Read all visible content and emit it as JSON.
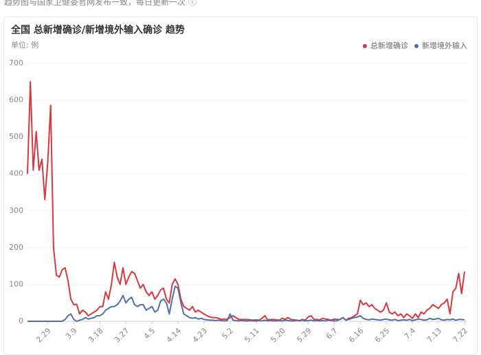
{
  "page": {
    "note": "趋势图与国家卫健委官网发布一致，每日更新一次"
  },
  "chart_data": {
    "type": "line",
    "title": "全国 总新增确诊/新增境外输入确诊 趋势",
    "unit": "单位: 例",
    "categories": [
      null,
      null,
      null,
      null,
      null,
      null,
      null,
      "2.29",
      null,
      null,
      null,
      null,
      null,
      null,
      null,
      null,
      "3.9",
      null,
      null,
      null,
      null,
      null,
      null,
      null,
      null,
      "3.18",
      null,
      null,
      null,
      null,
      null,
      null,
      null,
      null,
      "3.27",
      null,
      null,
      null,
      null,
      null,
      null,
      null,
      null,
      "4.5",
      null,
      null,
      null,
      null,
      null,
      null,
      null,
      null,
      "4.14",
      null,
      null,
      null,
      null,
      null,
      null,
      null,
      null,
      "4.23",
      null,
      null,
      null,
      null,
      null,
      null,
      null,
      null,
      "5.2",
      null,
      null,
      null,
      null,
      null,
      null,
      null,
      null,
      "5.11",
      null,
      null,
      null,
      null,
      null,
      null,
      null,
      null,
      "5.20",
      null,
      null,
      null,
      null,
      null,
      null,
      null,
      null,
      "5.29",
      null,
      null,
      null,
      null,
      null,
      null,
      null,
      null,
      "6.7",
      null,
      null,
      null,
      null,
      null,
      null,
      null,
      null,
      "6.16",
      null,
      null,
      null,
      null,
      null,
      null,
      null,
      null,
      "6.25",
      null,
      null,
      null,
      null,
      null,
      null,
      null,
      null,
      "7.4",
      null,
      null,
      null,
      null,
      null,
      null,
      null,
      null,
      "7.13",
      null,
      null,
      null,
      null,
      null,
      null,
      null,
      null,
      "7.22"
    ],
    "series": [
      {
        "name": "总新增确诊",
        "color": "#d9363e",
        "values": [
          400,
          650,
          410,
          515,
          410,
          440,
          330,
          430,
          586,
          200,
          125,
          120,
          140,
          145,
          110,
          60,
          45,
          46,
          20,
          30,
          25,
          15,
          20,
          25,
          30,
          40,
          40,
          80,
          60,
          100,
          160,
          120,
          100,
          145,
          100,
          120,
          135,
          130,
          110,
          90,
          100,
          80,
          70,
          80,
          60,
          70,
          85,
          90,
          60,
          50,
          100,
          115,
          100,
          60,
          40,
          35,
          30,
          40,
          25,
          30,
          25,
          20,
          15,
          12,
          10,
          10,
          8,
          5,
          6,
          5,
          10,
          15,
          10,
          5,
          5,
          5,
          5,
          4,
          3,
          4,
          3,
          8,
          15,
          4,
          5,
          5,
          4,
          3,
          8,
          5,
          10,
          5,
          4,
          3,
          2,
          5,
          3,
          12,
          15,
          5,
          5,
          4,
          8,
          6,
          5,
          3,
          6,
          5,
          5,
          10,
          3,
          8,
          10,
          15,
          20,
          57,
          45,
          50,
          40,
          45,
          35,
          30,
          25,
          30,
          50,
          25,
          20,
          25,
          15,
          20,
          10,
          20,
          15,
          8,
          20,
          10,
          25,
          20,
          30,
          35,
          45,
          40,
          35,
          45,
          50,
          60,
          20,
          80,
          90,
          130,
          75,
          135
        ]
      },
      {
        "name": "新增境外输入",
        "color": "#4e6fa7",
        "values": [
          0,
          0,
          0,
          0,
          0,
          0,
          0,
          0,
          0,
          0,
          0,
          0,
          0,
          5,
          15,
          20,
          5,
          0,
          3,
          5,
          10,
          6,
          8,
          10,
          15,
          15,
          20,
          30,
          35,
          40,
          40,
          45,
          55,
          70,
          50,
          60,
          65,
          45,
          40,
          45,
          45,
          30,
          35,
          40,
          25,
          30,
          55,
          60,
          50,
          20,
          60,
          95,
          90,
          50,
          20,
          15,
          10,
          8,
          10,
          6,
          8,
          5,
          4,
          3,
          3,
          2,
          3,
          2,
          1,
          2,
          20,
          3,
          2,
          1,
          2,
          1,
          1,
          2,
          1,
          1,
          2,
          1,
          3,
          1,
          2,
          1,
          1,
          2,
          1,
          3,
          2,
          1,
          1,
          2,
          1,
          3,
          1,
          2,
          3,
          1,
          2,
          1,
          2,
          1,
          3,
          2,
          1,
          2,
          5,
          10,
          3,
          5,
          8,
          10,
          12,
          15,
          8,
          5,
          4,
          6,
          5,
          4,
          3,
          5,
          6,
          4,
          3,
          5,
          2,
          3,
          4,
          3,
          5,
          2,
          4,
          6,
          5,
          3,
          4,
          8,
          5,
          6,
          8,
          4,
          3,
          5,
          4,
          6,
          3,
          5,
          5,
          4
        ]
      }
    ],
    "ylim": [
      0,
      700
    ],
    "yticks": [
      0,
      100,
      200,
      300,
      400,
      500,
      600,
      700
    ],
    "grid": true,
    "legend": "top-right"
  }
}
